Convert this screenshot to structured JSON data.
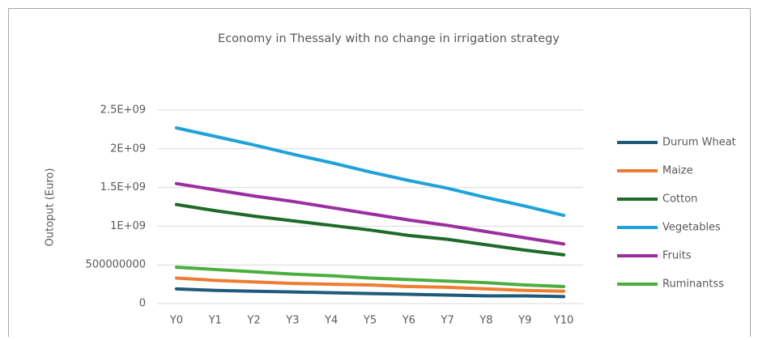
{
  "chart_data": {
    "type": "line",
    "title": "Economy in Thessaly with no change in irrigation strategy",
    "y_label": "Outoput (Euro)",
    "categories": [
      "Y0",
      "Y1",
      "Y2",
      "Y3",
      "Y4",
      "Y5",
      "Y6",
      "Y7",
      "Y8",
      "Y9",
      "Y10"
    ],
    "series": [
      {
        "name": "Durum Wheat",
        "color": "#1f5a7a",
        "values": [
          190000000,
          170000000,
          160000000,
          150000000,
          140000000,
          130000000,
          120000000,
          110000000,
          100000000,
          100000000,
          90000000
        ]
      },
      {
        "name": "Maize",
        "color": "#ed7d31",
        "values": [
          330000000,
          300000000,
          280000000,
          260000000,
          250000000,
          240000000,
          220000000,
          210000000,
          190000000,
          170000000,
          160000000
        ]
      },
      {
        "name": "Cotton",
        "color": "#1e6b27",
        "values": [
          1280000000,
          1200000000,
          1130000000,
          1070000000,
          1010000000,
          950000000,
          880000000,
          830000000,
          760000000,
          690000000,
          630000000
        ]
      },
      {
        "name": "Vegetables",
        "color": "#1fa2da",
        "values": [
          2270000000,
          2160000000,
          2050000000,
          1930000000,
          1820000000,
          1700000000,
          1590000000,
          1490000000,
          1370000000,
          1260000000,
          1140000000
        ]
      },
      {
        "name": "Fruits",
        "color": "#9b2fa0",
        "values": [
          1550000000,
          1470000000,
          1390000000,
          1320000000,
          1240000000,
          1160000000,
          1080000000,
          1010000000,
          930000000,
          850000000,
          770000000
        ]
      },
      {
        "name": "Ruminantss",
        "color": "#4cae3f",
        "values": [
          470000000,
          440000000,
          410000000,
          380000000,
          360000000,
          330000000,
          310000000,
          290000000,
          270000000,
          240000000,
          220000000
        ]
      }
    ],
    "ylim": [
      0,
      2500000000
    ],
    "yticks": [
      0,
      500000000,
      {
        "value": 1000000000,
        "label": "1E+09"
      },
      {
        "value": 1500000000,
        "label": "1.5E+09"
      },
      {
        "value": 2000000000,
        "label": "2E+09"
      },
      {
        "value": 2500000000,
        "label": "2.5E+09"
      }
    ],
    "grid": true,
    "legend": "right"
  }
}
